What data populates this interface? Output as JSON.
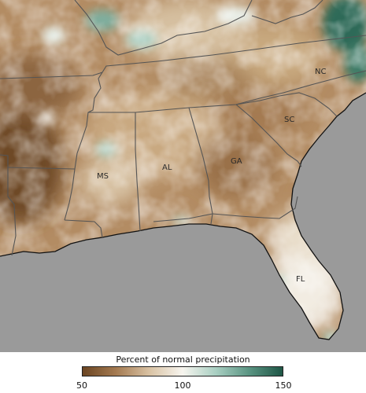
{
  "map": {
    "state_labels": {
      "nc": "NC",
      "sc": "SC",
      "ga": "GA",
      "al": "AL",
      "ms": "MS",
      "fl": "FL"
    },
    "ocean_color": "#9a9a9a",
    "dry_color": "#7a5530",
    "normal_color": "#f7f5f0",
    "wet_color": "#2f6b58"
  },
  "legend": {
    "title": "Percent of normal precipitation",
    "tick_min": "50",
    "tick_mid": "100",
    "tick_max": "150",
    "gradient": [
      "#6b4522",
      "#a47a51",
      "#d9c2a3",
      "#f7f5ef",
      "#a9cfc2",
      "#5a9482",
      "#1f5646"
    ]
  }
}
